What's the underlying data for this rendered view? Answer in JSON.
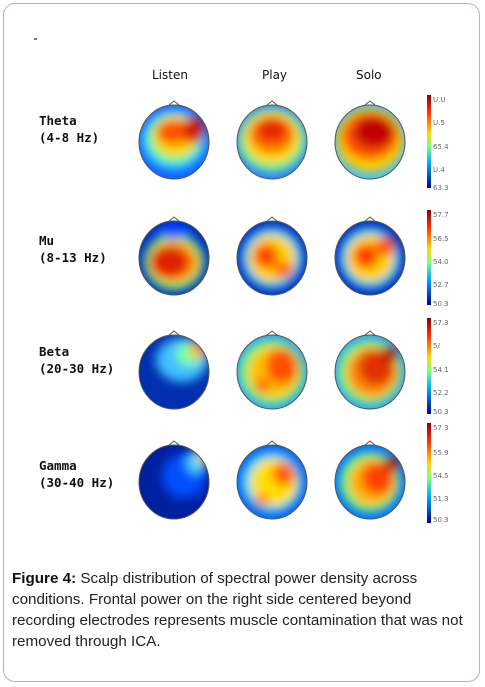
{
  "figure": {
    "columns": [
      "Listen",
      "Play",
      "Solo"
    ],
    "rows": [
      {
        "band": "Theta",
        "range": "(4-8 Hz)",
        "ticks": [
          "U.U",
          "U.5",
          "65.4",
          "U.4",
          "63.3"
        ]
      },
      {
        "band": "Mu",
        "range": "(8-13 Hz)",
        "ticks": [
          "57.7",
          "56.5",
          "54.0",
          "52.7",
          "50.3"
        ]
      },
      {
        "band": "Beta",
        "range": "(20-30 Hz)",
        "ticks": [
          "57.3",
          "5/",
          "54.1",
          "52.2",
          "50.3"
        ]
      },
      {
        "band": "Gamma",
        "range": "(30-40 Hz)",
        "ticks": [
          "57.3",
          "55.9",
          "54.5",
          "51.3",
          "50.3"
        ]
      }
    ],
    "colorbar_colors": [
      "#8b0000",
      "#ff4500",
      "#ffd700",
      "#7fff7f",
      "#00bfff",
      "#00008b"
    ]
  },
  "caption": {
    "label": "Figure 4:",
    "text": " Scalp distribution of spectral power density across conditions. Frontal power on the right side centered beyond recording electrodes represents muscle contamination that was not removed through ICA."
  }
}
